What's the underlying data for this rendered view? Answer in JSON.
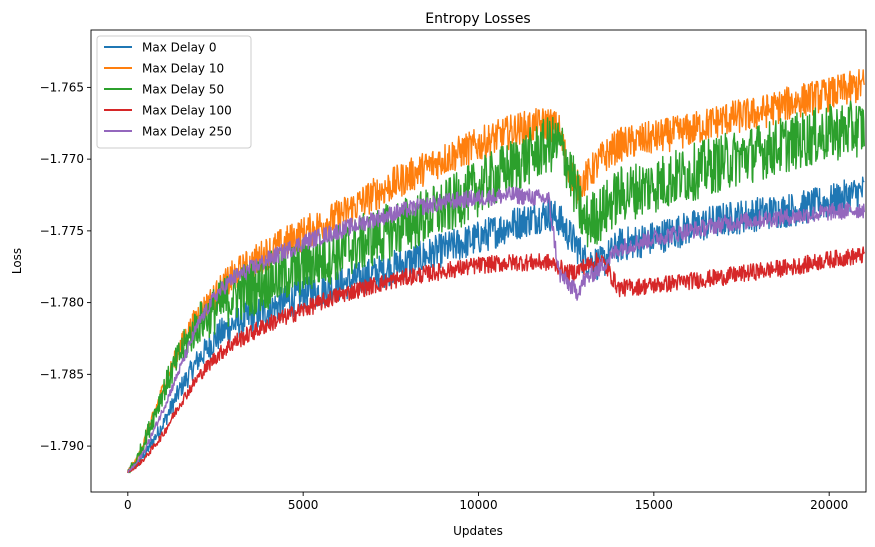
{
  "chart_data": {
    "type": "line",
    "title": "Entropy Losses",
    "xlabel": "Updates",
    "ylabel": "Loss",
    "xlim": [
      -1050,
      21050
    ],
    "ylim": [
      -1.7932,
      -1.761
    ],
    "xticks": [
      0,
      5000,
      10000,
      15000,
      20000
    ],
    "xtick_labels": [
      "0",
      "5000",
      "10000",
      "15000",
      "20000"
    ],
    "yticks": [
      -1.79,
      -1.785,
      -1.78,
      -1.775,
      -1.77,
      -1.765
    ],
    "ytick_labels": [
      "−1.790",
      "−1.785",
      "−1.780",
      "−1.775",
      "−1.770",
      "−1.765"
    ],
    "grid": false,
    "legend_position": "upper-left",
    "x": [
      0,
      250,
      500,
      1000,
      1500,
      2000,
      2500,
      3000,
      4000,
      5000,
      6000,
      7000,
      8000,
      9000,
      10000,
      11000,
      12000,
      12300,
      12500,
      12800,
      13000,
      13500,
      14000,
      15000,
      16000,
      17000,
      18000,
      19000,
      20000,
      21000
    ],
    "series": [
      {
        "name": "Max Delay 0",
        "color": "#1f77b4",
        "noise": 0.0012,
        "values": [
          -1.7918,
          -1.7913,
          -1.7905,
          -1.7885,
          -1.786,
          -1.784,
          -1.7825,
          -1.7815,
          -1.7805,
          -1.7795,
          -1.7788,
          -1.778,
          -1.7772,
          -1.7763,
          -1.7755,
          -1.7745,
          -1.7738,
          -1.7742,
          -1.775,
          -1.776,
          -1.777,
          -1.7773,
          -1.776,
          -1.7755,
          -1.7748,
          -1.7742,
          -1.7738,
          -1.7735,
          -1.773,
          -1.7722
        ]
      },
      {
        "name": "Max Delay 10",
        "color": "#ff7f0e",
        "noise": 0.0012,
        "values": [
          -1.7918,
          -1.791,
          -1.7895,
          -1.786,
          -1.783,
          -1.7808,
          -1.7795,
          -1.7782,
          -1.7765,
          -1.7752,
          -1.774,
          -1.7725,
          -1.7712,
          -1.77,
          -1.769,
          -1.768,
          -1.7675,
          -1.768,
          -1.77,
          -1.772,
          -1.7715,
          -1.77,
          -1.769,
          -1.7685,
          -1.768,
          -1.7672,
          -1.7668,
          -1.766,
          -1.7655,
          -1.7648
        ]
      },
      {
        "name": "Max Delay 50",
        "color": "#2ca02c",
        "noise": 0.002,
        "values": [
          -1.7918,
          -1.791,
          -1.7895,
          -1.7862,
          -1.7835,
          -1.7815,
          -1.7805,
          -1.7795,
          -1.7785,
          -1.7775,
          -1.7765,
          -1.7755,
          -1.7745,
          -1.7735,
          -1.772,
          -1.7705,
          -1.769,
          -1.769,
          -1.77,
          -1.7725,
          -1.7745,
          -1.7738,
          -1.7725,
          -1.7718,
          -1.771,
          -1.7702,
          -1.7695,
          -1.7688,
          -1.7682,
          -1.7678
        ]
      },
      {
        "name": "Max Delay 100",
        "color": "#d62728",
        "noise": 0.0006,
        "values": [
          -1.7918,
          -1.7914,
          -1.7908,
          -1.7892,
          -1.787,
          -1.7852,
          -1.7838,
          -1.7828,
          -1.7815,
          -1.7805,
          -1.7795,
          -1.7788,
          -1.7782,
          -1.7778,
          -1.7774,
          -1.7772,
          -1.7772,
          -1.7775,
          -1.778,
          -1.7778,
          -1.7775,
          -1.777,
          -1.779,
          -1.7788,
          -1.7785,
          -1.7782,
          -1.7778,
          -1.7775,
          -1.777,
          -1.7767
        ]
      },
      {
        "name": "Max Delay 250",
        "color": "#9467bd",
        "noise": 0.0006,
        "values": [
          -1.7918,
          -1.7912,
          -1.7902,
          -1.7875,
          -1.7845,
          -1.7815,
          -1.7795,
          -1.7783,
          -1.777,
          -1.7758,
          -1.775,
          -1.7742,
          -1.7735,
          -1.773,
          -1.7727,
          -1.7725,
          -1.7728,
          -1.778,
          -1.7785,
          -1.7793,
          -1.7785,
          -1.7775,
          -1.7762,
          -1.7755,
          -1.775,
          -1.7745,
          -1.7742,
          -1.774,
          -1.7737,
          -1.7735
        ]
      }
    ]
  }
}
